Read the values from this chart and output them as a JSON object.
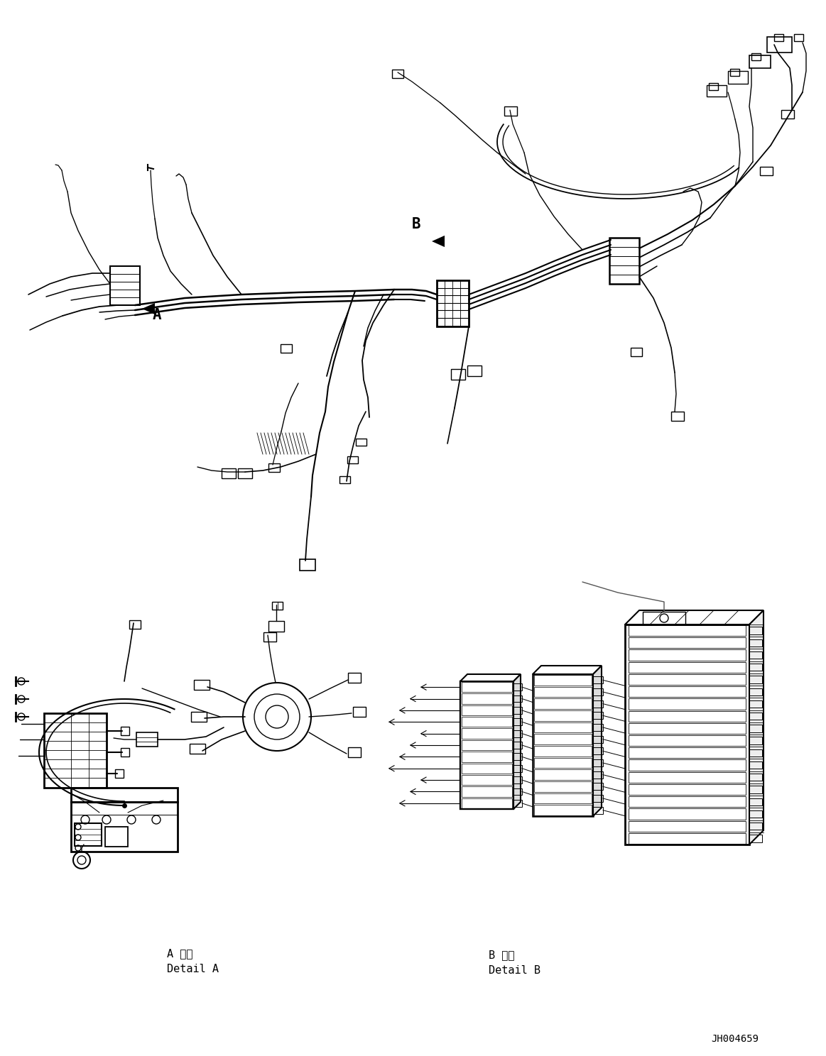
{
  "background_color": "#ffffff",
  "diagram_id": "JH004659",
  "label_A": "A",
  "label_B": "B",
  "label_detail_A_jp": "A 詳細",
  "label_detail_A_en": "Detail A",
  "label_detail_B_jp": "B 詳細",
  "label_detail_B_en": "Detail B",
  "line_color": "#000000",
  "text_color": "#000000",
  "fig_width": 11.63,
  "fig_height": 14.88,
  "dpi": 100
}
